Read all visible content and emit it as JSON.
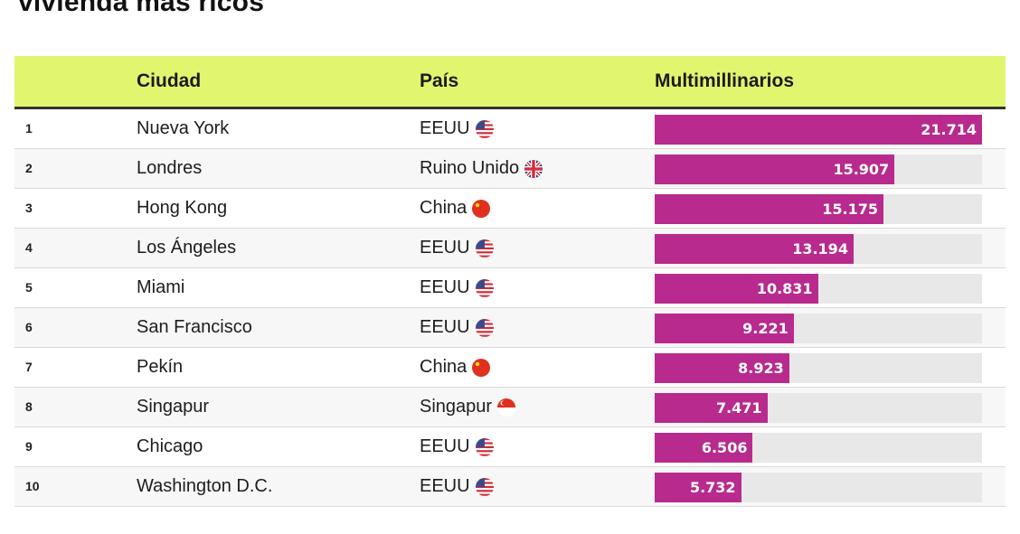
{
  "title": "vivienda más ricos",
  "header": {
    "city": "Ciudad",
    "country": "País",
    "value": "Multimillinarios"
  },
  "colors": {
    "header_bg": "#e2f56f",
    "bar": "#b82a8d",
    "track": "#e8e8e8"
  },
  "chart_data": {
    "type": "bar",
    "title": "vivienda más ricos",
    "xlabel": "",
    "ylabel": "Multimillinarios",
    "ylim": [
      0,
      21714
    ],
    "categories": [
      "Nueva York",
      "Londres",
      "Hong Kong",
      "Los Ángeles",
      "Miami",
      "San Francisco",
      "Pekín",
      "Singapur",
      "Chicago",
      "Washington D.C."
    ],
    "values": [
      21714,
      15907,
      15175,
      13194,
      10831,
      9221,
      8923,
      7471,
      6506,
      5732
    ]
  },
  "rows": [
    {
      "rank": "1",
      "city": "Nueva York",
      "country": "EEUU",
      "flag": "us-flag-icon",
      "value": 21714,
      "label": "21.714"
    },
    {
      "rank": "2",
      "city": "Londres",
      "country": "Ruino Unido",
      "flag": "uk-flag-icon",
      "value": 15907,
      "label": "15.907"
    },
    {
      "rank": "3",
      "city": "Hong Kong",
      "country": "China",
      "flag": "china-flag-icon",
      "value": 15175,
      "label": "15.175"
    },
    {
      "rank": "4",
      "city": "Los Ángeles",
      "country": "EEUU",
      "flag": "us-flag-icon",
      "value": 13194,
      "label": "13.194"
    },
    {
      "rank": "5",
      "city": "Miami",
      "country": "EEUU",
      "flag": "us-flag-icon",
      "value": 10831,
      "label": "10.831"
    },
    {
      "rank": "6",
      "city": "San Francisco",
      "country": "EEUU",
      "flag": "us-flag-icon",
      "value": 9221,
      "label": "9.221"
    },
    {
      "rank": "7",
      "city": "Pekín",
      "country": "China",
      "flag": "china-flag-icon",
      "value": 8923,
      "label": "8.923"
    },
    {
      "rank": "8",
      "city": "Singapur",
      "country": "Singapur",
      "flag": "singapore-flag-icon",
      "value": 7471,
      "label": "7.471"
    },
    {
      "rank": "9",
      "city": "Chicago",
      "country": "EEUU",
      "flag": "us-flag-icon",
      "value": 6506,
      "label": "6.506"
    },
    {
      "rank": "10",
      "city": "Washington D.C.",
      "country": "EEUU",
      "flag": "us-flag-icon",
      "value": 5732,
      "label": "5.732"
    }
  ]
}
